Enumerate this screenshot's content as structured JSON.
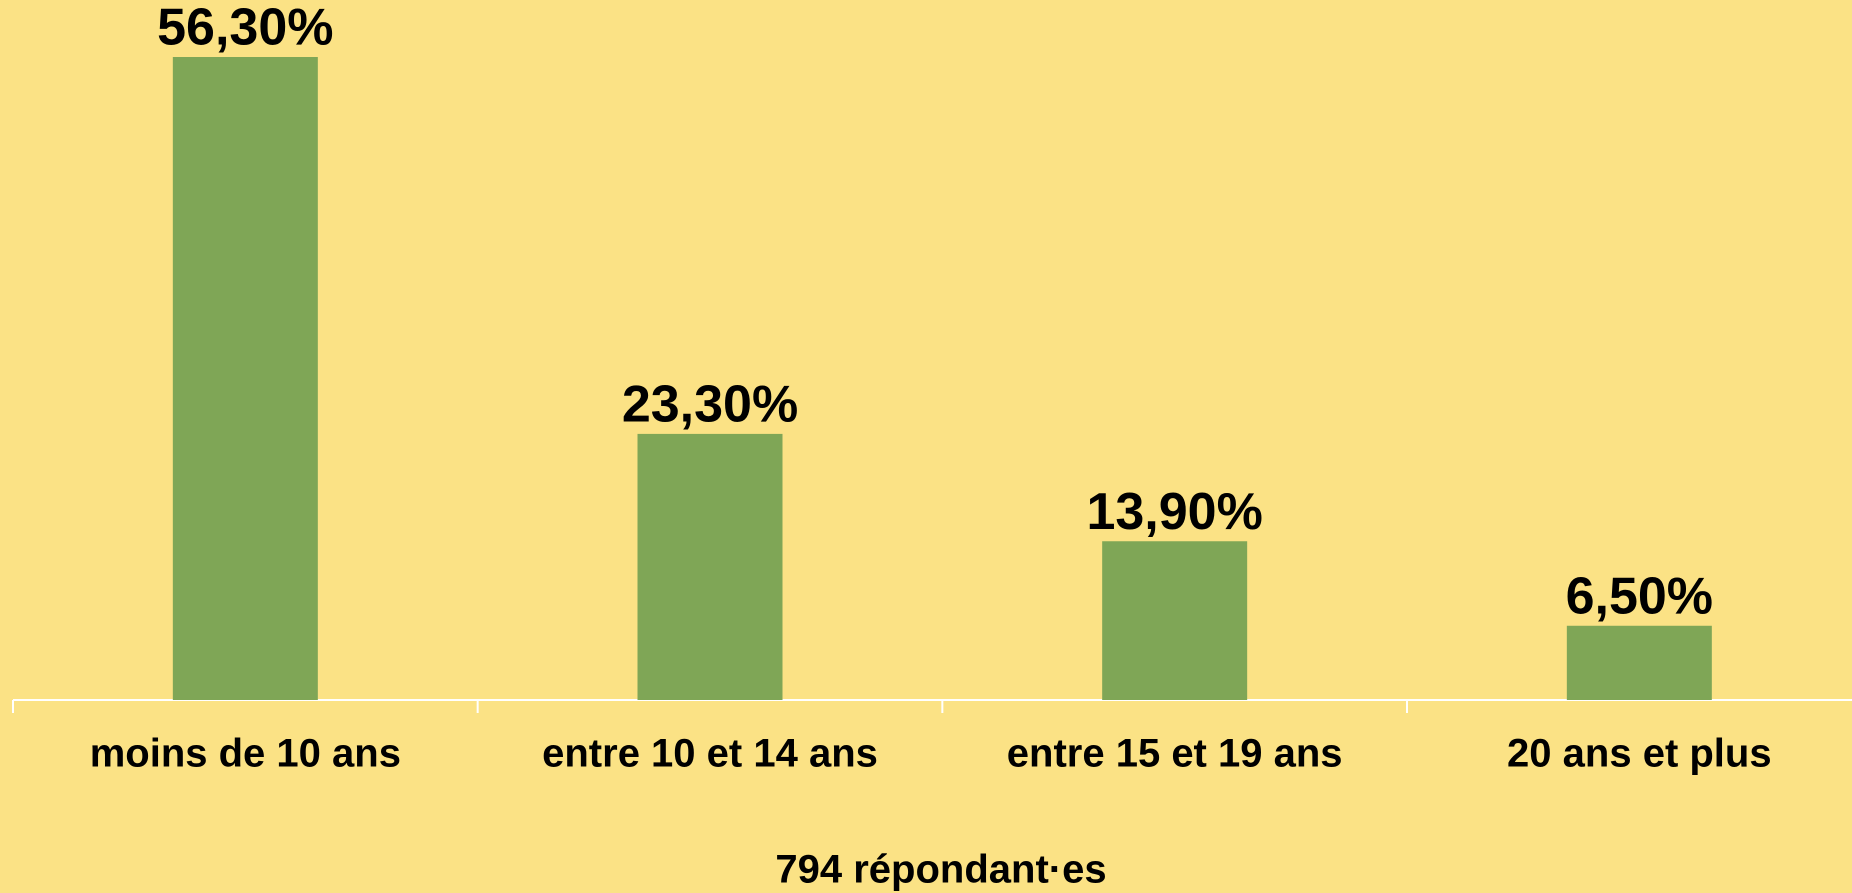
{
  "chart_data": {
    "type": "bar",
    "categories": [
      "moins de 10 ans",
      "entre 10 et 14 ans",
      "entre 15 et 19 ans",
      "20 ans et plus"
    ],
    "values": [
      56.3,
      23.3,
      13.9,
      6.5
    ],
    "value_labels": [
      "56,30%",
      "23,30%",
      "13,90%",
      "6,50%"
    ],
    "color": "#7fa656",
    "x_label": "794 répondant·es"
  }
}
